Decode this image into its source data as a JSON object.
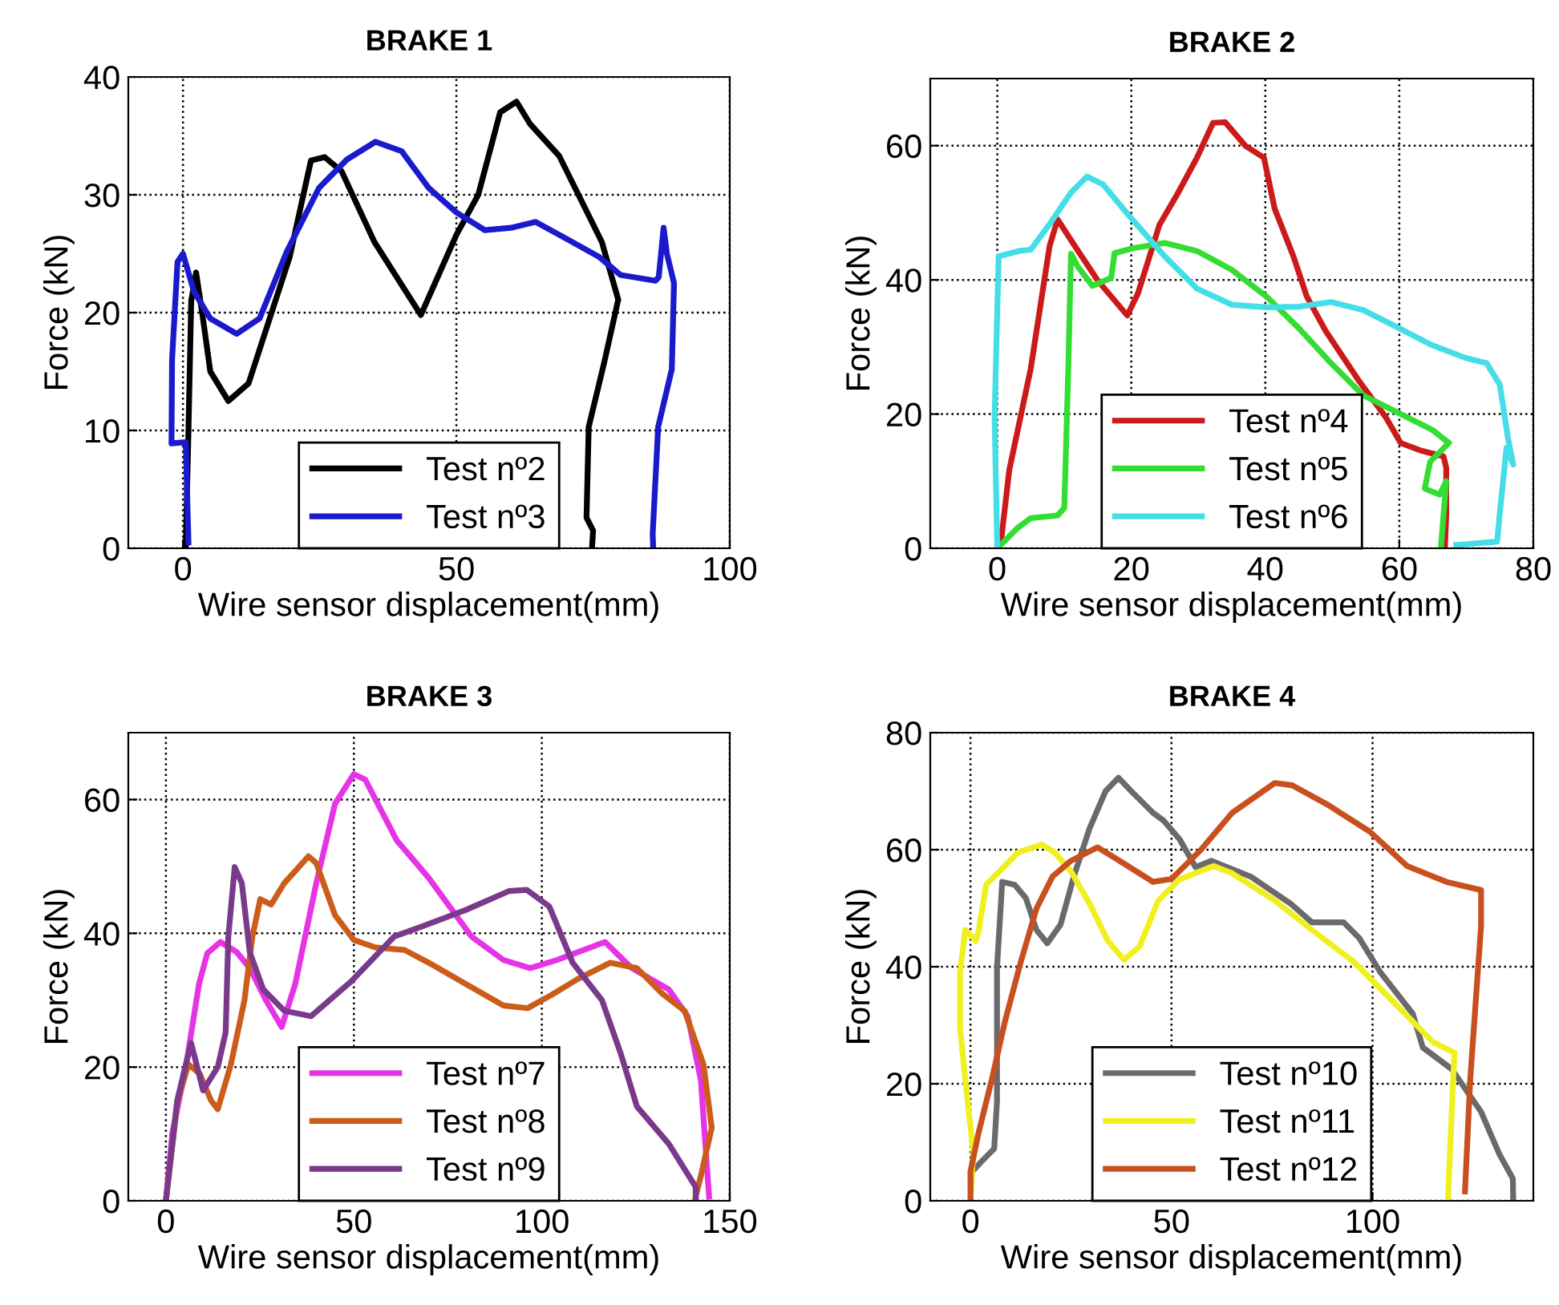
{
  "chart_data": [
    {
      "type": "line",
      "title": "BRAKE 1",
      "xlabel": "Wire sensor displacement(mm)",
      "ylabel": "Force (kN)",
      "xlim": [
        -10,
        100
      ],
      "ylim": [
        0,
        40
      ],
      "xticks": [
        0,
        50,
        100
      ],
      "yticks": [
        0,
        10,
        20,
        30,
        40
      ],
      "grid": true,
      "legend": "bottom",
      "line_style": "solid",
      "series": [
        {
          "name": "Test nº2",
          "color": "#000000",
          "x": [
            0.5,
            1,
            1.5,
            2.4,
            3.5,
            5,
            8.3,
            12,
            19.5,
            23.4,
            25.9,
            29,
            35,
            43.5,
            50,
            54,
            58,
            61,
            63.5,
            68.8,
            76.6,
            79.6,
            77,
            74.2,
            73.8,
            75,
            74.8
          ],
          "values": [
            0,
            10,
            21,
            23.4,
            20,
            15,
            12.5,
            14,
            24.7,
            32.9,
            33.2,
            32,
            26,
            19.8,
            26.6,
            30,
            37,
            37.9,
            36,
            33.3,
            26,
            21.1,
            15.7,
            10.3,
            2.6,
            1.5,
            0
          ]
        },
        {
          "name": "Test nº3",
          "color": "#1a1acc",
          "x": [
            1,
            0.5,
            -2.1,
            -2,
            -1,
            0,
            2,
            5,
            9.8,
            14,
            19,
            24.9,
            30,
            35.2,
            40,
            44.9,
            50,
            55.2,
            60,
            64.5,
            70,
            76.2,
            80,
            86.4,
            87,
            87.9,
            88.5,
            89.8,
            89.4,
            86.9,
            85.9,
            86
          ],
          "values": [
            0.5,
            9,
            8.9,
            16,
            24.3,
            25,
            21.8,
            19.5,
            18.2,
            19.5,
            25.2,
            30.6,
            33,
            34.5,
            33.7,
            30.6,
            28.5,
            27,
            27.2,
            27.7,
            26.3,
            24.7,
            23.2,
            22.7,
            23,
            27.2,
            25,
            22.5,
            15.2,
            10.3,
            1.2,
            0
          ]
        }
      ]
    },
    {
      "type": "line",
      "title": "BRAKE 2",
      "xlabel": "Wire sensor displacement(mm)",
      "ylabel": "Force (kN)",
      "xlim": [
        -10,
        80
      ],
      "ylim": [
        0,
        70
      ],
      "xticks": [
        0,
        20,
        40,
        60,
        80
      ],
      "yticks": [
        0,
        20,
        40,
        60
      ],
      "grid": true,
      "legend": "bottom",
      "line_style": "solid",
      "series": [
        {
          "name": "Test nº4",
          "color": "#cc1a1a",
          "x": [
            0.6,
            1.8,
            5,
            7.8,
            9,
            11.8,
            15,
            19.4,
            21,
            24.2,
            27,
            29.8,
            32.2,
            34,
            37,
            39.8,
            41.4,
            44.2,
            46.2,
            49,
            53.8,
            58,
            60.2,
            63.4,
            66.6,
            67,
            67,
            66.8
          ],
          "values": [
            1.4,
            11.7,
            26.8,
            45,
            49,
            44.7,
            39.9,
            34.7,
            38,
            48.2,
            53,
            58.2,
            63.4,
            63.5,
            60,
            58.2,
            50.6,
            43.5,
            37.5,
            32.4,
            25.2,
            19.5,
            15.7,
            14.5,
            13.7,
            12,
            5,
            0
          ]
        },
        {
          "name": "Test nº5",
          "color": "#33dd33",
          "x": [
            0,
            3,
            5,
            9,
            10,
            10.6,
            11,
            12,
            14.2,
            17,
            17.5,
            20.2,
            25,
            29.8,
            35,
            40.2,
            45,
            49.8,
            54.6,
            60.2,
            65,
            67.4,
            64.6,
            63.8,
            66,
            67,
            66.2
          ],
          "values": [
            0,
            3,
            4.5,
            4.9,
            6,
            26.8,
            43.9,
            42,
            39.1,
            40.3,
            44,
            44.7,
            45.5,
            44.3,
            41.5,
            37.5,
            32.8,
            27.6,
            22.8,
            20,
            17.6,
            15.7,
            12.9,
            8.9,
            8,
            10,
            0
          ]
        },
        {
          "name": "Test nº6",
          "color": "#44dde8",
          "x": [
            0,
            -0.4,
            0.2,
            3.2,
            5,
            7.8,
            11,
            13.4,
            15.8,
            19.8,
            25,
            29.8,
            35,
            40.2,
            45,
            49.8,
            54.6,
            59.4,
            64.6,
            69.8,
            73,
            75,
            76.2,
            77,
            76,
            75,
            74.6,
            69.8,
            68.5
          ],
          "values": [
            0,
            19.6,
            43.5,
            44.3,
            44.5,
            48.3,
            53,
            55.4,
            54.2,
            49.4,
            43.5,
            38.7,
            36.3,
            35.9,
            36,
            36.7,
            35.5,
            33.1,
            30.4,
            28.4,
            27.6,
            24.4,
            16.5,
            12.5,
            15,
            5.3,
            1,
            0.6,
            0.5
          ]
        }
      ]
    },
    {
      "type": "line",
      "title": "BRAKE 3",
      "xlabel": "Wire sensor displacement(mm)",
      "ylabel": "Force (kN)",
      "xlim": [
        -10,
        150
      ],
      "ylim": [
        0,
        70
      ],
      "xticks": [
        0,
        50,
        100,
        150
      ],
      "yticks": [
        0,
        20,
        40,
        60
      ],
      "grid": true,
      "legend": "bottom",
      "line_style": "solid",
      "series": [
        {
          "name": "Test nº7",
          "color": "#e633e6",
          "x": [
            0,
            1.7,
            5.3,
            8.8,
            11,
            14.5,
            18.8,
            22.3,
            26.6,
            30.8,
            34.4,
            40,
            45,
            50,
            53,
            61.4,
            69.9,
            81.3,
            89.8,
            96.9,
            104,
            116.8,
            123.9,
            133.8,
            138.8,
            142.3,
            143.8,
            144.5
          ],
          "values": [
            0,
            10.1,
            20,
            32.4,
            37,
            38.7,
            37.2,
            34.8,
            30,
            26,
            32.4,
            47.5,
            59.4,
            63.8,
            63,
            53.9,
            48.3,
            39.5,
            36,
            34.8,
            36,
            38.7,
            34.8,
            31.6,
            27.6,
            18.1,
            6.1,
            0.6
          ]
        },
        {
          "name": "Test nº8",
          "color": "#cc5c1a",
          "x": [
            0,
            3.1,
            6,
            9,
            12,
            13.8,
            17.3,
            20.9,
            23,
            25.1,
            28,
            31.5,
            37.9,
            40,
            45,
            50,
            55.7,
            63.5,
            69.9,
            79.8,
            89.8,
            96.2,
            102.6,
            109.7,
            118.2,
            125.3,
            132,
            138,
            143,
            145.2,
            142.3,
            140.9
          ],
          "values": [
            0,
            14.9,
            20.4,
            19,
            15,
            13.7,
            20.4,
            30,
            39.5,
            45.1,
            44.3,
            47.5,
            51.5,
            50.5,
            42.7,
            39,
            37.9,
            37.5,
            35.6,
            32.4,
            29.2,
            28.8,
            30.8,
            33.2,
            35.6,
            34.8,
            31,
            28.4,
            20.4,
            10.9,
            3.7,
            0.6
          ]
        },
        {
          "name": "Test nº9",
          "color": "#7a3a8c",
          "x": [
            0,
            3,
            6,
            6.7,
            9.9,
            13.8,
            15.9,
            16.6,
            18.3,
            20.2,
            22.3,
            25.9,
            31.5,
            38.6,
            49.3,
            60.7,
            68.5,
            79.8,
            91.2,
            96,
            102,
            108.2,
            116,
            121,
            125.3,
            133.8,
            140.9,
            141
          ],
          "values": [
            0,
            15,
            22,
            23.6,
            16.5,
            20,
            25.2,
            39.5,
            49.9,
            47.5,
            37.2,
            31.6,
            28.4,
            27.6,
            32.8,
            39.5,
            41.1,
            43.5,
            46.3,
            46.5,
            44,
            35.6,
            30,
            22,
            14.1,
            8.5,
            2.1,
            0
          ]
        }
      ]
    },
    {
      "type": "line",
      "title": "BRAKE 4",
      "xlabel": "Wire sensor displacement(mm)",
      "ylabel": "Force (kN)",
      "xlim": [
        -10,
        140
      ],
      "ylim": [
        0,
        80
      ],
      "xticks": [
        0,
        50,
        100
      ],
      "yticks": [
        0,
        20,
        40,
        60,
        80
      ],
      "grid": true,
      "legend": "bottom",
      "line_style": "solid",
      "series": [
        {
          "name": "Test nº10",
          "color": "#6a6a6a",
          "x": [
            0.7,
            2.6,
            5.9,
            6.6,
            6.6,
            7.9,
            11,
            13.8,
            16.4,
            19.1,
            22.4,
            25.7,
            29.6,
            33.6,
            36.8,
            40,
            45.4,
            48,
            52,
            56,
            59.9,
            69.7,
            79.6,
            84.9,
            92.8,
            96.7,
            102,
            110,
            112.5,
            119.7,
            127,
            131.6,
            134.9,
            135
          ],
          "values": [
            5.2,
            6.6,
            8.9,
            17,
            39.9,
            54.5,
            54,
            51.7,
            46.3,
            44,
            47.2,
            55.4,
            63.6,
            70,
            72.3,
            70,
            66.3,
            65,
            61.8,
            57,
            58.1,
            55.4,
            50.8,
            47.6,
            47.6,
            44.9,
            39,
            32,
            26.2,
            22.5,
            15.2,
            7.9,
            3.8,
            0
          ]
        },
        {
          "name": "Test nº11",
          "color": "#f0f020",
          "x": [
            0,
            0.7,
            -1.3,
            -2.6,
            -2.6,
            -1.3,
            1.3,
            2,
            3.9,
            7.2,
            11.8,
            17.8,
            21,
            25,
            29.6,
            34.2,
            38.2,
            42.1,
            46.7,
            52,
            60.5,
            65,
            75.7,
            84.9,
            95.4,
            104.6,
            115.1,
            120.4,
            120,
            118.8
          ],
          "values": [
            0,
            8.4,
            20.7,
            29.8,
            39,
            46.3,
            44.4,
            46,
            54,
            56.3,
            59.5,
            60.9,
            59.5,
            56.3,
            50.8,
            44.4,
            41.2,
            43.5,
            51.3,
            54.9,
            57.2,
            56,
            51.3,
            46.3,
            40.8,
            34.4,
            27.1,
            25.3,
            20,
            0.6
          ]
        },
        {
          "name": "Test nº12",
          "color": "#c8501e",
          "x": [
            0,
            0,
            2,
            5.3,
            8.6,
            12.5,
            16.4,
            20.4,
            25,
            31.6,
            35,
            40.1,
            45.4,
            50,
            57.2,
            65.1,
            75.7,
            80,
            88.8,
            99.3,
            108.6,
            118.4,
            127,
            127,
            124.3,
            123
          ],
          "values": [
            0,
            5,
            11.6,
            20.7,
            30.7,
            40.8,
            49.9,
            55.4,
            58.1,
            60.4,
            59,
            56.8,
            54.5,
            55,
            59.9,
            66.3,
            71.4,
            71,
            67.7,
            63.1,
            57.2,
            54.5,
            53.1,
            47,
            20.7,
            1.6
          ]
        }
      ]
    }
  ]
}
